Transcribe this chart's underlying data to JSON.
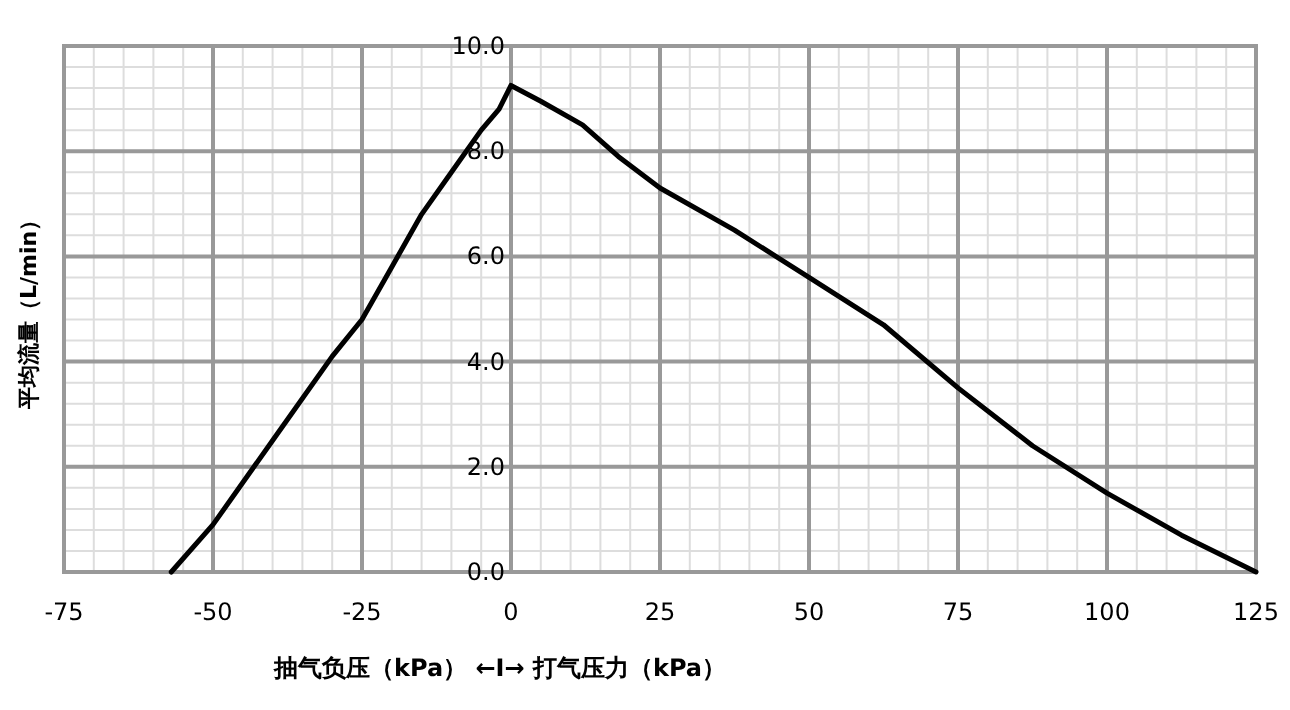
{
  "chart_data": {
    "type": "line",
    "xlabel": "抽气负压（kPa） ←I→ 打气压力（kPa）",
    "ylabel": "平均流量（L/min）",
    "x": [
      -57,
      -50,
      -40,
      -30,
      -25,
      -20,
      -15,
      -10,
      -5,
      -2,
      0,
      5,
      12,
      18,
      25,
      37.5,
      50,
      62.5,
      75,
      87.5,
      100,
      112.5,
      125
    ],
    "series": [
      {
        "color": "#000000",
        "values": [
          0,
          0.9,
          2.5,
          4.1,
          4.8,
          5.8,
          6.8,
          7.6,
          8.4,
          8.8,
          9.25,
          8.95,
          8.5,
          7.9,
          7.3,
          6.5,
          5.6,
          4.7,
          3.5,
          2.4,
          1.5,
          0.7,
          0
        ]
      }
    ],
    "xlim": [
      -75,
      125
    ],
    "ylim": [
      0,
      10
    ],
    "xticks": [
      -75,
      -50,
      -25,
      0,
      25,
      50,
      75,
      100,
      125
    ],
    "yticks": [
      {
        "value": 0,
        "label": "0.0"
      },
      {
        "value": 2,
        "label": "2.0"
      },
      {
        "value": 4,
        "label": "4.0"
      },
      {
        "value": 6,
        "label": "6.0"
      },
      {
        "value": 8,
        "label": "8.0"
      },
      {
        "value": 10,
        "label": "10.0"
      }
    ],
    "grid": true
  }
}
